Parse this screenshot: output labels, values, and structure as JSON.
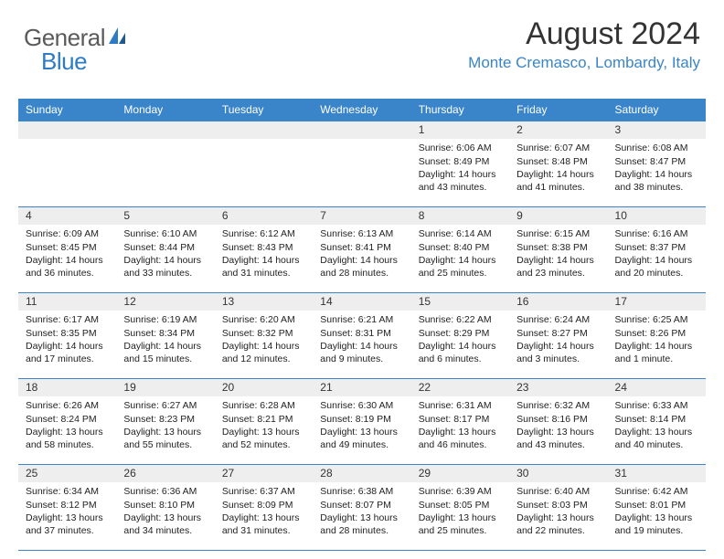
{
  "brand": {
    "word1": "General",
    "word2": "Blue",
    "word1_color": "#5a5a5a",
    "word2_color": "#2d7bc4",
    "sail_color": "#2d7bc4"
  },
  "header": {
    "title": "August 2024",
    "location": "Monte Cremasco, Lombardy, Italy"
  },
  "colors": {
    "header_bg": "#3a85c9",
    "header_text": "#ffffff",
    "date_strip_bg": "#eeeeee",
    "cell_border": "#3a85c9",
    "location_color": "#3a85c9",
    "body_text": "#222222"
  },
  "day_headers": [
    "Sunday",
    "Monday",
    "Tuesday",
    "Wednesday",
    "Thursday",
    "Friday",
    "Saturday"
  ],
  "weeks": [
    [
      null,
      null,
      null,
      null,
      {
        "date": "1",
        "sunrise": "Sunrise: 6:06 AM",
        "sunset": "Sunset: 8:49 PM",
        "daylight": "Daylight: 14 hours and 43 minutes."
      },
      {
        "date": "2",
        "sunrise": "Sunrise: 6:07 AM",
        "sunset": "Sunset: 8:48 PM",
        "daylight": "Daylight: 14 hours and 41 minutes."
      },
      {
        "date": "3",
        "sunrise": "Sunrise: 6:08 AM",
        "sunset": "Sunset: 8:47 PM",
        "daylight": "Daylight: 14 hours and 38 minutes."
      }
    ],
    [
      {
        "date": "4",
        "sunrise": "Sunrise: 6:09 AM",
        "sunset": "Sunset: 8:45 PM",
        "daylight": "Daylight: 14 hours and 36 minutes."
      },
      {
        "date": "5",
        "sunrise": "Sunrise: 6:10 AM",
        "sunset": "Sunset: 8:44 PM",
        "daylight": "Daylight: 14 hours and 33 minutes."
      },
      {
        "date": "6",
        "sunrise": "Sunrise: 6:12 AM",
        "sunset": "Sunset: 8:43 PM",
        "daylight": "Daylight: 14 hours and 31 minutes."
      },
      {
        "date": "7",
        "sunrise": "Sunrise: 6:13 AM",
        "sunset": "Sunset: 8:41 PM",
        "daylight": "Daylight: 14 hours and 28 minutes."
      },
      {
        "date": "8",
        "sunrise": "Sunrise: 6:14 AM",
        "sunset": "Sunset: 8:40 PM",
        "daylight": "Daylight: 14 hours and 25 minutes."
      },
      {
        "date": "9",
        "sunrise": "Sunrise: 6:15 AM",
        "sunset": "Sunset: 8:38 PM",
        "daylight": "Daylight: 14 hours and 23 minutes."
      },
      {
        "date": "10",
        "sunrise": "Sunrise: 6:16 AM",
        "sunset": "Sunset: 8:37 PM",
        "daylight": "Daylight: 14 hours and 20 minutes."
      }
    ],
    [
      {
        "date": "11",
        "sunrise": "Sunrise: 6:17 AM",
        "sunset": "Sunset: 8:35 PM",
        "daylight": "Daylight: 14 hours and 17 minutes."
      },
      {
        "date": "12",
        "sunrise": "Sunrise: 6:19 AM",
        "sunset": "Sunset: 8:34 PM",
        "daylight": "Daylight: 14 hours and 15 minutes."
      },
      {
        "date": "13",
        "sunrise": "Sunrise: 6:20 AM",
        "sunset": "Sunset: 8:32 PM",
        "daylight": "Daylight: 14 hours and 12 minutes."
      },
      {
        "date": "14",
        "sunrise": "Sunrise: 6:21 AM",
        "sunset": "Sunset: 8:31 PM",
        "daylight": "Daylight: 14 hours and 9 minutes."
      },
      {
        "date": "15",
        "sunrise": "Sunrise: 6:22 AM",
        "sunset": "Sunset: 8:29 PM",
        "daylight": "Daylight: 14 hours and 6 minutes."
      },
      {
        "date": "16",
        "sunrise": "Sunrise: 6:24 AM",
        "sunset": "Sunset: 8:27 PM",
        "daylight": "Daylight: 14 hours and 3 minutes."
      },
      {
        "date": "17",
        "sunrise": "Sunrise: 6:25 AM",
        "sunset": "Sunset: 8:26 PM",
        "daylight": "Daylight: 14 hours and 1 minute."
      }
    ],
    [
      {
        "date": "18",
        "sunrise": "Sunrise: 6:26 AM",
        "sunset": "Sunset: 8:24 PM",
        "daylight": "Daylight: 13 hours and 58 minutes."
      },
      {
        "date": "19",
        "sunrise": "Sunrise: 6:27 AM",
        "sunset": "Sunset: 8:23 PM",
        "daylight": "Daylight: 13 hours and 55 minutes."
      },
      {
        "date": "20",
        "sunrise": "Sunrise: 6:28 AM",
        "sunset": "Sunset: 8:21 PM",
        "daylight": "Daylight: 13 hours and 52 minutes."
      },
      {
        "date": "21",
        "sunrise": "Sunrise: 6:30 AM",
        "sunset": "Sunset: 8:19 PM",
        "daylight": "Daylight: 13 hours and 49 minutes."
      },
      {
        "date": "22",
        "sunrise": "Sunrise: 6:31 AM",
        "sunset": "Sunset: 8:17 PM",
        "daylight": "Daylight: 13 hours and 46 minutes."
      },
      {
        "date": "23",
        "sunrise": "Sunrise: 6:32 AM",
        "sunset": "Sunset: 8:16 PM",
        "daylight": "Daylight: 13 hours and 43 minutes."
      },
      {
        "date": "24",
        "sunrise": "Sunrise: 6:33 AM",
        "sunset": "Sunset: 8:14 PM",
        "daylight": "Daylight: 13 hours and 40 minutes."
      }
    ],
    [
      {
        "date": "25",
        "sunrise": "Sunrise: 6:34 AM",
        "sunset": "Sunset: 8:12 PM",
        "daylight": "Daylight: 13 hours and 37 minutes."
      },
      {
        "date": "26",
        "sunrise": "Sunrise: 6:36 AM",
        "sunset": "Sunset: 8:10 PM",
        "daylight": "Daylight: 13 hours and 34 minutes."
      },
      {
        "date": "27",
        "sunrise": "Sunrise: 6:37 AM",
        "sunset": "Sunset: 8:09 PM",
        "daylight": "Daylight: 13 hours and 31 minutes."
      },
      {
        "date": "28",
        "sunrise": "Sunrise: 6:38 AM",
        "sunset": "Sunset: 8:07 PM",
        "daylight": "Daylight: 13 hours and 28 minutes."
      },
      {
        "date": "29",
        "sunrise": "Sunrise: 6:39 AM",
        "sunset": "Sunset: 8:05 PM",
        "daylight": "Daylight: 13 hours and 25 minutes."
      },
      {
        "date": "30",
        "sunrise": "Sunrise: 6:40 AM",
        "sunset": "Sunset: 8:03 PM",
        "daylight": "Daylight: 13 hours and 22 minutes."
      },
      {
        "date": "31",
        "sunrise": "Sunrise: 6:42 AM",
        "sunset": "Sunset: 8:01 PM",
        "daylight": "Daylight: 13 hours and 19 minutes."
      }
    ]
  ]
}
